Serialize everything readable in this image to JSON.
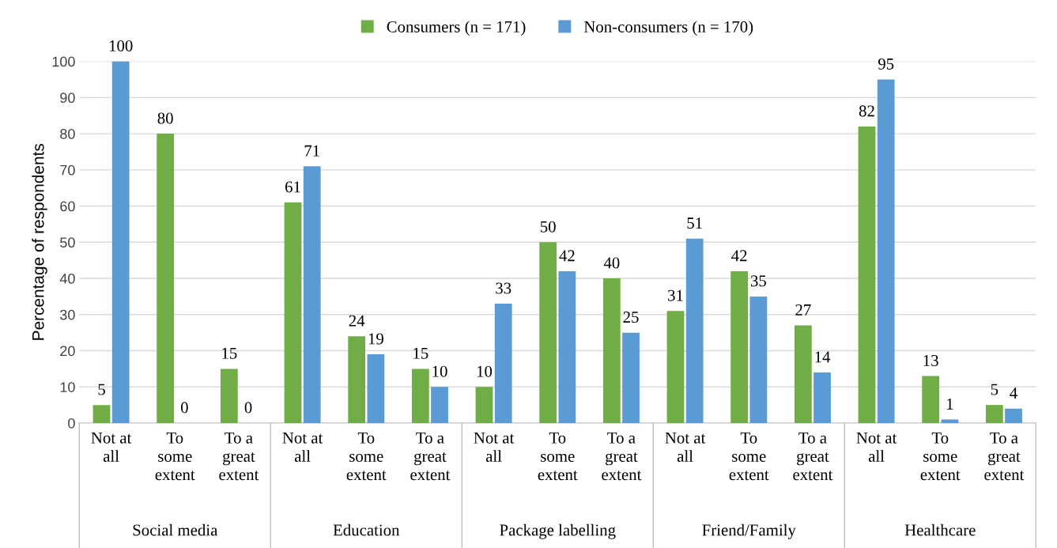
{
  "chart_data": {
    "type": "bar",
    "ylabel": "Percentage of respondents",
    "categories": [
      "Not at\nall",
      "To\nsome\nextent",
      "To a\ngreat\nextent",
      "Not at\nall",
      "To\nsome\nextent",
      "To a\ngreat\nextent",
      "Not at\nall",
      "To\nsome\nextent",
      "To a\ngreat\nextent",
      "Not at\nall",
      "To\nsome\nextent",
      "To a\ngreat\nextent",
      "Not at\nall",
      "To\nsome\nextent",
      "To a\ngreat\nextent"
    ],
    "series": [
      {
        "name": "Consumers (n = 171)",
        "color": "#70ad47",
        "values": [
          5,
          80,
          15,
          61,
          24,
          15,
          10,
          50,
          40,
          31,
          42,
          27,
          82,
          13,
          5
        ]
      },
      {
        "name": "Non-consumers (n = 170)",
        "color": "#5b9bd5",
        "values": [
          100,
          0,
          0,
          71,
          19,
          10,
          33,
          42,
          25,
          51,
          35,
          14,
          95,
          1,
          4
        ]
      }
    ],
    "annotations": [
      "Social media",
      "Education",
      "Package labelling",
      "Friend/Family",
      "Healthcare"
    ],
    "ylim": [
      0,
      100
    ],
    "yticks": [
      0,
      10,
      20,
      30,
      40,
      50,
      60,
      70,
      80,
      90,
      100
    ],
    "grid": "y",
    "legend": "top",
    "data_labels": true
  }
}
